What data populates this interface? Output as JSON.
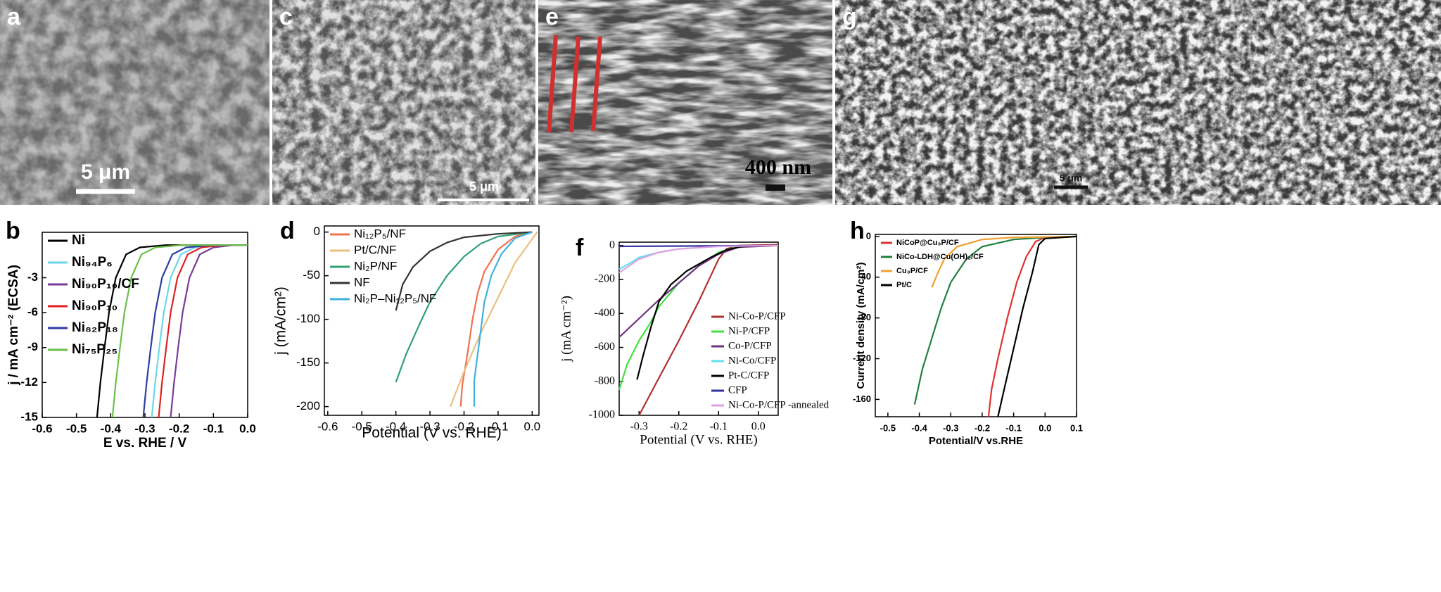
{
  "images": [
    {
      "label": "a",
      "scale_bar": "5 μm"
    },
    {
      "label": "c",
      "scale_bar": "5 μm"
    },
    {
      "label": "e",
      "scale_bar": "400 nm"
    },
    {
      "label": "g",
      "scale_bar": "5 μm"
    }
  ],
  "chart_data": [
    {
      "type": "line",
      "panel": "b",
      "x_label": "E vs. RHE / V",
      "y_label": "j / mA cm⁻² (ECSA)",
      "xlim": [
        -0.6,
        0
      ],
      "ylim": [
        -15,
        0.9
      ],
      "xticks": [
        -0.6,
        -0.5,
        -0.4,
        -0.3,
        -0.2,
        -0.1,
        {
          "value": 0,
          "label": "0.0"
        }
      ],
      "yticks": [
        -15,
        -12,
        -9,
        -6,
        -3
      ],
      "legend": "upper left",
      "series": [
        {
          "name": "Ni",
          "color": "#000000",
          "x": [
            -0.44,
            -0.43,
            -0.418,
            -0.405,
            -0.385,
            -0.355,
            -0.315,
            -0.24,
            -0.1,
            0
          ],
          "values": [
            -15,
            -12,
            -9,
            -6,
            -3,
            -1,
            -0.4,
            -0.2,
            -0.2,
            -0.2
          ]
        },
        {
          "name": "Ni₉₄P₆",
          "color": "#6fd6e8",
          "x": [
            -0.28,
            -0.27,
            -0.258,
            -0.245,
            -0.225,
            -0.195,
            -0.155,
            -0.08,
            0
          ],
          "values": [
            -15,
            -12,
            -9,
            -6,
            -3,
            -1,
            -0.4,
            -0.2,
            -0.2
          ]
        },
        {
          "name": "Ni₉₀P₁₀/CF",
          "color": "#7a3a9a",
          "x": [
            -0.225,
            -0.215,
            -0.203,
            -0.19,
            -0.17,
            -0.14,
            -0.1,
            -0.04,
            0
          ],
          "values": [
            -15,
            -12,
            -9,
            -6,
            -3,
            -1,
            -0.4,
            -0.2,
            -0.2
          ]
        },
        {
          "name": "Ni₉₀P₁₀",
          "color": "#e02020",
          "x": [
            -0.26,
            -0.25,
            -0.238,
            -0.225,
            -0.205,
            -0.175,
            -0.135,
            -0.07,
            0
          ],
          "values": [
            -15,
            -12,
            -9,
            -6,
            -3,
            -1,
            -0.4,
            -0.2,
            -0.2
          ]
        },
        {
          "name": "Ni₈₂P₁₈",
          "color": "#2c3ea0",
          "x": [
            -0.305,
            -0.295,
            -0.283,
            -0.27,
            -0.25,
            -0.22,
            -0.18,
            -0.1,
            0
          ],
          "values": [
            -15,
            -12,
            -9,
            -6,
            -3,
            -1,
            -0.4,
            -0.2,
            -0.2
          ]
        },
        {
          "name": "Ni₇₅P₂₅",
          "color": "#6cc04a",
          "x": [
            -0.395,
            -0.385,
            -0.373,
            -0.36,
            -0.34,
            -0.31,
            -0.27,
            -0.19,
            -0.05,
            0
          ],
          "values": [
            -15,
            -12,
            -9,
            -6,
            -3,
            -1,
            -0.4,
            -0.2,
            -0.2,
            -0.2
          ]
        }
      ]
    },
    {
      "type": "line",
      "panel": "d",
      "x_label": "Potential (V vs. RHE)",
      "y_label": "j (mA/cm²)",
      "xlim": [
        -0.61,
        0.02
      ],
      "ylim": [
        -210,
        7
      ],
      "xticks": [
        -0.6,
        -0.5,
        -0.4,
        -0.3,
        -0.2,
        -0.1,
        {
          "value": 0,
          "label": "0.0"
        }
      ],
      "yticks": [
        -200,
        -150,
        -100,
        -50,
        0
      ],
      "legend": "upper left",
      "series": [
        {
          "name": "Ni₁₂P₅/NF",
          "color": "#f07050",
          "x": [
            -0.21,
            -0.205,
            -0.19,
            -0.175,
            -0.16,
            -0.14,
            -0.1,
            -0.05,
            0
          ],
          "values": [
            -200,
            -175,
            -140,
            -100,
            -70,
            -45,
            -20,
            -5,
            0
          ]
        },
        {
          "name": "Pt/C/NF",
          "color": "#e8c080",
          "x": [
            -0.24,
            -0.2,
            -0.15,
            -0.1,
            -0.05,
            0,
            0.015
          ],
          "values": [
            -200,
            -160,
            -115,
            -75,
            -35,
            -8,
            0
          ]
        },
        {
          "name": "Ni₂P/NF",
          "color": "#30a070",
          "x": [
            -0.4,
            -0.37,
            -0.33,
            -0.3,
            -0.25,
            -0.2,
            -0.15,
            -0.1,
            0
          ],
          "values": [
            -172,
            -140,
            -105,
            -80,
            -50,
            -28,
            -13,
            -5,
            0
          ]
        },
        {
          "name": "NF",
          "color": "#333333",
          "x": [
            -0.4,
            -0.38,
            -0.35,
            -0.3,
            -0.25,
            -0.2,
            -0.1,
            0
          ],
          "values": [
            -90,
            -60,
            -40,
            -22,
            -12,
            -6,
            -2,
            0
          ]
        },
        {
          "name": "Ni₂P–Ni₁₂P₅/NF",
          "color": "#40b0e0",
          "x": [
            -0.17,
            -0.17,
            -0.16,
            -0.15,
            -0.14,
            -0.12,
            -0.09,
            -0.05,
            0
          ],
          "values": [
            -200,
            -170,
            -140,
            -110,
            -80,
            -50,
            -25,
            -7,
            0
          ]
        }
      ]
    },
    {
      "type": "line",
      "panel": "f",
      "x_label": "Potential (V vs. RHE)",
      "y_label": "j (mA cm⁻²)",
      "xlim": [
        -0.35,
        0.05
      ],
      "ylim": [
        -1000,
        20
      ],
      "xticks": [
        -0.3,
        -0.2,
        -0.1,
        {
          "value": 0,
          "label": "0.0"
        }
      ],
      "yticks": [
        -1000,
        -800,
        -600,
        -400,
        -200,
        0
      ],
      "legend": "lower right",
      "series": [
        {
          "name": "Ni-Co-P/CFP",
          "color": "#b03030",
          "x": [
            -0.3,
            -0.25,
            -0.2,
            -0.15,
            -0.12,
            -0.1,
            -0.08,
            -0.05,
            0.05
          ],
          "values": [
            -1000,
            -780,
            -560,
            -330,
            -180,
            -80,
            -20,
            0,
            5
          ]
        },
        {
          "name": "Ni-P/CFP",
          "color": "#40e040",
          "x": [
            -0.35,
            -0.33,
            -0.3,
            -0.27,
            -0.25,
            -0.2,
            -0.15,
            -0.1,
            -0.05,
            0.05
          ],
          "values": [
            -850,
            -700,
            -560,
            -450,
            -360,
            -220,
            -120,
            -40,
            -5,
            0
          ]
        },
        {
          "name": "Co-P/CFP",
          "color": "#703080",
          "x": [
            -0.35,
            -0.3,
            -0.25,
            -0.2,
            -0.15,
            -0.1,
            -0.05,
            0.05
          ],
          "values": [
            -540,
            -430,
            -320,
            -220,
            -120,
            -50,
            -10,
            0
          ]
        },
        {
          "name": "Ni-Co/CFP",
          "color": "#60e0f0",
          "x": [
            -0.35,
            -0.32,
            -0.3,
            -0.25,
            -0.2,
            -0.1,
            0.05
          ],
          "values": [
            -140,
            -100,
            -70,
            -40,
            -20,
            -5,
            0
          ]
        },
        {
          "name": "Pt-C/CFP",
          "color": "#000000",
          "x": [
            -0.305,
            -0.29,
            -0.27,
            -0.25,
            -0.22,
            -0.18,
            -0.12,
            -0.08,
            -0.04,
            0.05
          ],
          "values": [
            -790,
            -650,
            -480,
            -330,
            -230,
            -150,
            -70,
            -25,
            -5,
            0
          ]
        },
        {
          "name": "CFP",
          "color": "#3030a0",
          "x": [
            -0.35,
            0.05
          ],
          "values": [
            -5,
            0
          ]
        },
        {
          "name": "Ni-Co-P/CFP -annealed",
          "color": "#e0a0e0",
          "x": [
            -0.35,
            -0.3,
            -0.25,
            -0.2,
            -0.1,
            0.05
          ],
          "values": [
            -160,
            -80,
            -40,
            -20,
            -5,
            0
          ]
        }
      ]
    },
    {
      "type": "line",
      "panel": "h",
      "x_label": "Potential/V vs.RHE",
      "y_label": "Current density (mA/cm²)",
      "xlim": [
        -0.54,
        0.1
      ],
      "ylim": [
        -177,
        2
      ],
      "xticks": [
        -0.5,
        -0.4,
        -0.3,
        -0.2,
        -0.1,
        {
          "value": 0,
          "label": "0.0"
        },
        0.1
      ],
      "yticks": [
        -160,
        -120,
        -80,
        -40,
        0
      ],
      "legend": "upper left",
      "series": [
        {
          "name": "NiCoP@Cu₃P/CF",
          "color": "#e03030",
          "x": [
            -0.18,
            -0.17,
            -0.15,
            -0.12,
            -0.09,
            -0.06,
            -0.03,
            0,
            0.1
          ],
          "values": [
            -177,
            -150,
            -120,
            -80,
            -45,
            -20,
            -5,
            -1,
            0
          ]
        },
        {
          "name": "NiCo-LDH@Cu(OH)₂/CF",
          "color": "#208040",
          "x": [
            -0.415,
            -0.39,
            -0.36,
            -0.33,
            -0.3,
            -0.25,
            -0.2,
            -0.1,
            0,
            0.1
          ],
          "values": [
            -165,
            -130,
            -100,
            -70,
            -45,
            -22,
            -10,
            -3,
            -1,
            0
          ]
        },
        {
          "name": "Cu₃P/CF",
          "color": "#f0a030",
          "x": [
            -0.36,
            -0.34,
            -0.32,
            -0.28,
            -0.2,
            -0.1,
            0.1
          ],
          "values": [
            -50,
            -35,
            -22,
            -10,
            -3,
            -1,
            0
          ]
        },
        {
          "name": "Pt/C",
          "color": "#000000",
          "x": [
            -0.15,
            -0.13,
            -0.1,
            -0.07,
            -0.04,
            -0.02,
            0,
            0.1
          ],
          "values": [
            -177,
            -150,
            -110,
            -70,
            -35,
            -8,
            -2,
            0
          ]
        }
      ]
    }
  ]
}
